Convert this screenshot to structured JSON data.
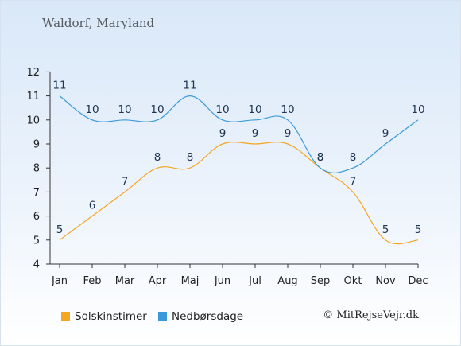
{
  "colors": {
    "sunshine": "#f5a623",
    "rain": "#3a9ad9"
  },
  "legend": [
    {
      "label": "Solskinstimer",
      "color": "#f5a623"
    },
    {
      "label": "Nedbørsdage",
      "color": "#3a9ad9"
    }
  ],
  "credit": "© MitRejseVejr.dk",
  "chart_data": {
    "type": "line",
    "title": "Waldorf, Maryland",
    "categories": [
      "Jan",
      "Feb",
      "Mar",
      "Apr",
      "Maj",
      "Jun",
      "Jul",
      "Aug",
      "Sep",
      "Okt",
      "Nov",
      "Dec"
    ],
    "series": [
      {
        "name": "Solskinstimer",
        "color": "#f5a623",
        "values": [
          5,
          6,
          7,
          8,
          8,
          9,
          9,
          9,
          8,
          7,
          5,
          5
        ]
      },
      {
        "name": "Nedbørsdage",
        "color": "#3a9ad9",
        "values": [
          11,
          10,
          10,
          10,
          11,
          10,
          10,
          10,
          8,
          8,
          9,
          10
        ]
      }
    ],
    "yticks": [
      4,
      5,
      6,
      7,
      8,
      9,
      10,
      11,
      12
    ],
    "ylim": [
      4,
      12
    ],
    "grid": false,
    "legend_position": "bottom"
  }
}
